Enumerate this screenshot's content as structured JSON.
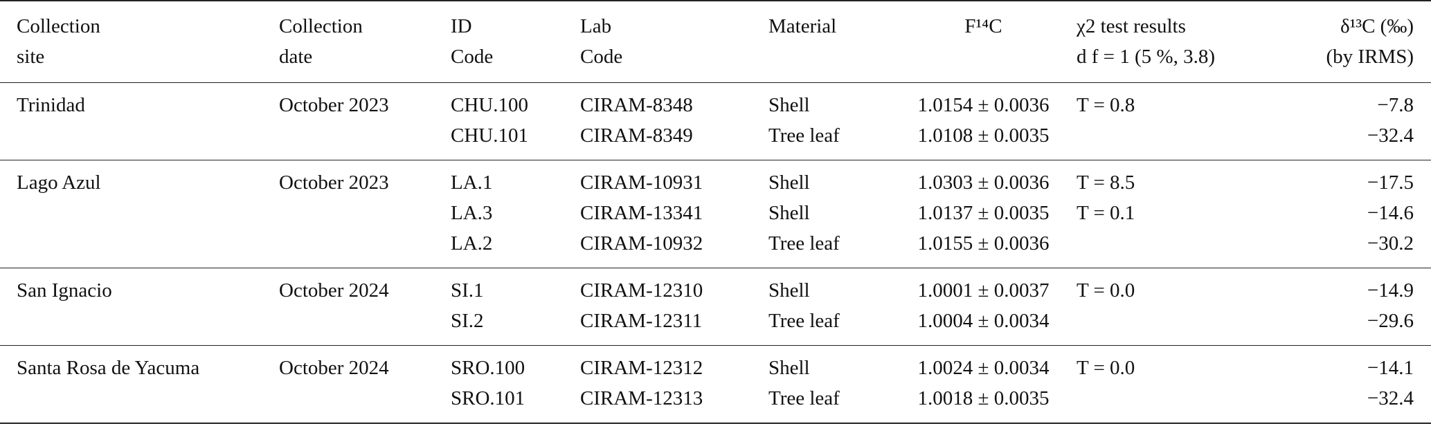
{
  "table": {
    "header": [
      [
        "Collection",
        "site"
      ],
      [
        "Collection",
        "date"
      ],
      [
        "ID",
        "Code"
      ],
      [
        "Lab",
        "Code"
      ],
      [
        "Material"
      ],
      [
        "F¹⁴C"
      ],
      [
        "χ2 test results",
        "d f  = 1 (5 %, 3.8)"
      ],
      [
        "δ¹³C (‰)",
        "(by IRMS)"
      ]
    ],
    "groups": [
      {
        "site": "Trinidad",
        "date": "October 2023",
        "rows": [
          {
            "id": "CHU.100",
            "lab": "CIRAM-8348",
            "material": "Shell",
            "f14c": "1.0154 ± 0.0036",
            "chi2": "T = 0.8",
            "d13c": "−7.8"
          },
          {
            "id": "CHU.101",
            "lab": "CIRAM-8349",
            "material": "Tree leaf",
            "f14c": "1.0108 ± 0.0035",
            "d13c": "−32.4"
          }
        ]
      },
      {
        "site": "Lago Azul",
        "date": "October 2023",
        "rows": [
          {
            "id": "LA.1",
            "lab": "CIRAM-10931",
            "material": "Shell",
            "f14c": "1.0303 ± 0.0036",
            "chi2": "T = 8.5",
            "d13c": "−17.5"
          },
          {
            "id": "LA.3",
            "lab": "CIRAM-13341",
            "material": "Shell",
            "f14c": "1.0137 ± 0.0035",
            "chi2": "T = 0.1",
            "d13c": "−14.6"
          },
          {
            "id": "LA.2",
            "lab": "CIRAM-10932",
            "material": "Tree leaf",
            "f14c": "1.0155 ± 0.0036",
            "d13c": "−30.2"
          }
        ]
      },
      {
        "site": "San Ignacio",
        "date": "October 2024",
        "rows": [
          {
            "id": "SI.1",
            "lab": "CIRAM-12310",
            "material": "Shell",
            "f14c": "1.0001 ± 0.0037",
            "chi2": "T = 0.0",
            "d13c": "−14.9"
          },
          {
            "id": "SI.2",
            "lab": "CIRAM-12311",
            "material": "Tree leaf",
            "f14c": "1.0004 ± 0.0034",
            "d13c": "−29.6"
          }
        ]
      },
      {
        "site": "Santa Rosa de Yacuma",
        "date": "October 2024",
        "rows": [
          {
            "id": "SRO.100",
            "lab": "CIRAM-12312",
            "material": "Shell",
            "f14c": "1.0024 ± 0.0034",
            "chi2": "T = 0.0",
            "d13c": "−14.1"
          },
          {
            "id": "SRO.101",
            "lab": "CIRAM-12313",
            "material": "Tree leaf",
            "f14c": "1.0018 ± 0.0035",
            "d13c": "−32.4"
          }
        ]
      }
    ]
  }
}
